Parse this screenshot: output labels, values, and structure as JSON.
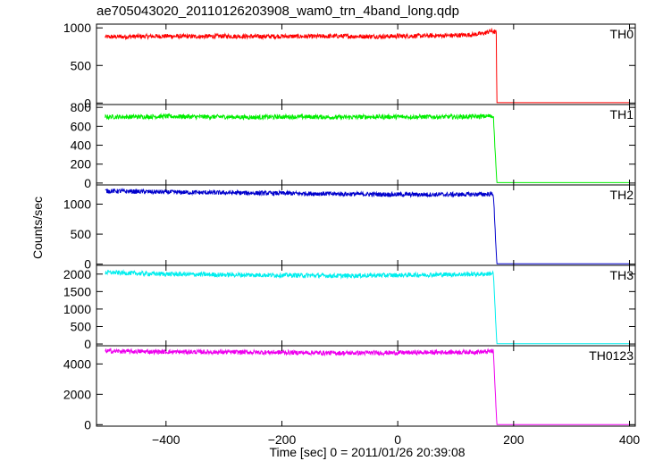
{
  "title": "ae705043020_20110126203908_wam0_trn_4band_long.qdp",
  "ylabel": "Counts/sec",
  "xlabel": "Time [sec] 0 = 2011/01/26 20:39:08",
  "chart_data": {
    "type": "line",
    "title": "ae705043020_20110126203908_wam0_trn_4band_long.qdp",
    "xlabel": "Time [sec] 0 = 2011/01/26 20:39:08",
    "ylabel": "Counts/sec",
    "xlim": [
      -520,
      410
    ],
    "x_ticks": [
      -400,
      -200,
      0,
      200,
      400
    ],
    "grid": false,
    "shared_x": true,
    "series": [
      {
        "name": "TH0",
        "color": "#ff0000",
        "ylim": [
          -20,
          1050
        ],
        "y_ticks": [
          0,
          500,
          1000
        ],
        "y_tick_labels": [
          "0",
          "500",
          "1000"
        ],
        "x": [
          -505,
          -450,
          -400,
          -350,
          -300,
          -250,
          -200,
          -150,
          -100,
          -50,
          0,
          50,
          100,
          130,
          150,
          160,
          170,
          171,
          173,
          400
        ],
        "values": [
          880,
          885,
          890,
          885,
          890,
          885,
          888,
          885,
          890,
          885,
          890,
          895,
          900,
          910,
          930,
          960,
          940,
          5,
          5,
          5
        ]
      },
      {
        "name": "TH1",
        "color": "#00ee00",
        "ylim": [
          -20,
          830
        ],
        "y_ticks": [
          0,
          200,
          400,
          600,
          800
        ],
        "y_tick_labels": [
          "0",
          "200",
          "400",
          "600",
          "800"
        ],
        "x": [
          -505,
          -450,
          -400,
          -350,
          -300,
          -250,
          -200,
          -150,
          -100,
          -50,
          0,
          50,
          100,
          150,
          165,
          171,
          173,
          400
        ],
        "values": [
          700,
          700,
          705,
          700,
          700,
          695,
          700,
          700,
          695,
          700,
          700,
          700,
          700,
          705,
          710,
          5,
          5,
          5
        ]
      },
      {
        "name": "TH2",
        "color": "#0000cc",
        "ylim": [
          -20,
          1320
        ],
        "y_ticks": [
          0,
          500,
          1000
        ],
        "y_tick_labels": [
          "0",
          "500",
          "1000"
        ],
        "x": [
          -505,
          -450,
          -400,
          -350,
          -300,
          -250,
          -200,
          -150,
          -100,
          -50,
          0,
          50,
          100,
          150,
          165,
          171,
          173,
          400
        ],
        "values": [
          1220,
          1210,
          1200,
          1195,
          1190,
          1185,
          1180,
          1175,
          1170,
          1165,
          1160,
          1160,
          1160,
          1165,
          1170,
          5,
          5,
          5
        ]
      },
      {
        "name": "TH3",
        "color": "#00eeee",
        "ylim": [
          -50,
          2250
        ],
        "y_ticks": [
          0,
          500,
          1000,
          1500,
          2000
        ],
        "y_tick_labels": [
          "0",
          "500",
          "1000",
          "1500",
          "2000"
        ],
        "x": [
          -505,
          -450,
          -400,
          -350,
          -300,
          -250,
          -200,
          -150,
          -100,
          -50,
          0,
          50,
          100,
          150,
          165,
          171,
          173,
          400
        ],
        "values": [
          2050,
          2020,
          2000,
          1990,
          1980,
          1975,
          1970,
          1960,
          1950,
          1960,
          1970,
          1980,
          1990,
          2000,
          2020,
          5,
          5,
          5
        ]
      },
      {
        "name": "TH0123",
        "color": "#ee00ee",
        "ylim": [
          -100,
          5200
        ],
        "y_ticks": [
          0,
          2000,
          4000
        ],
        "y_tick_labels": [
          "0",
          "2000",
          "4000"
        ],
        "x": [
          -505,
          -450,
          -400,
          -350,
          -300,
          -250,
          -200,
          -150,
          -100,
          -50,
          0,
          50,
          100,
          150,
          165,
          171,
          173,
          400
        ],
        "values": [
          4850,
          4820,
          4800,
          4790,
          4780,
          4770,
          4760,
          4740,
          4720,
          4730,
          4740,
          4760,
          4780,
          4800,
          4850,
          5,
          5,
          5
        ]
      }
    ]
  }
}
